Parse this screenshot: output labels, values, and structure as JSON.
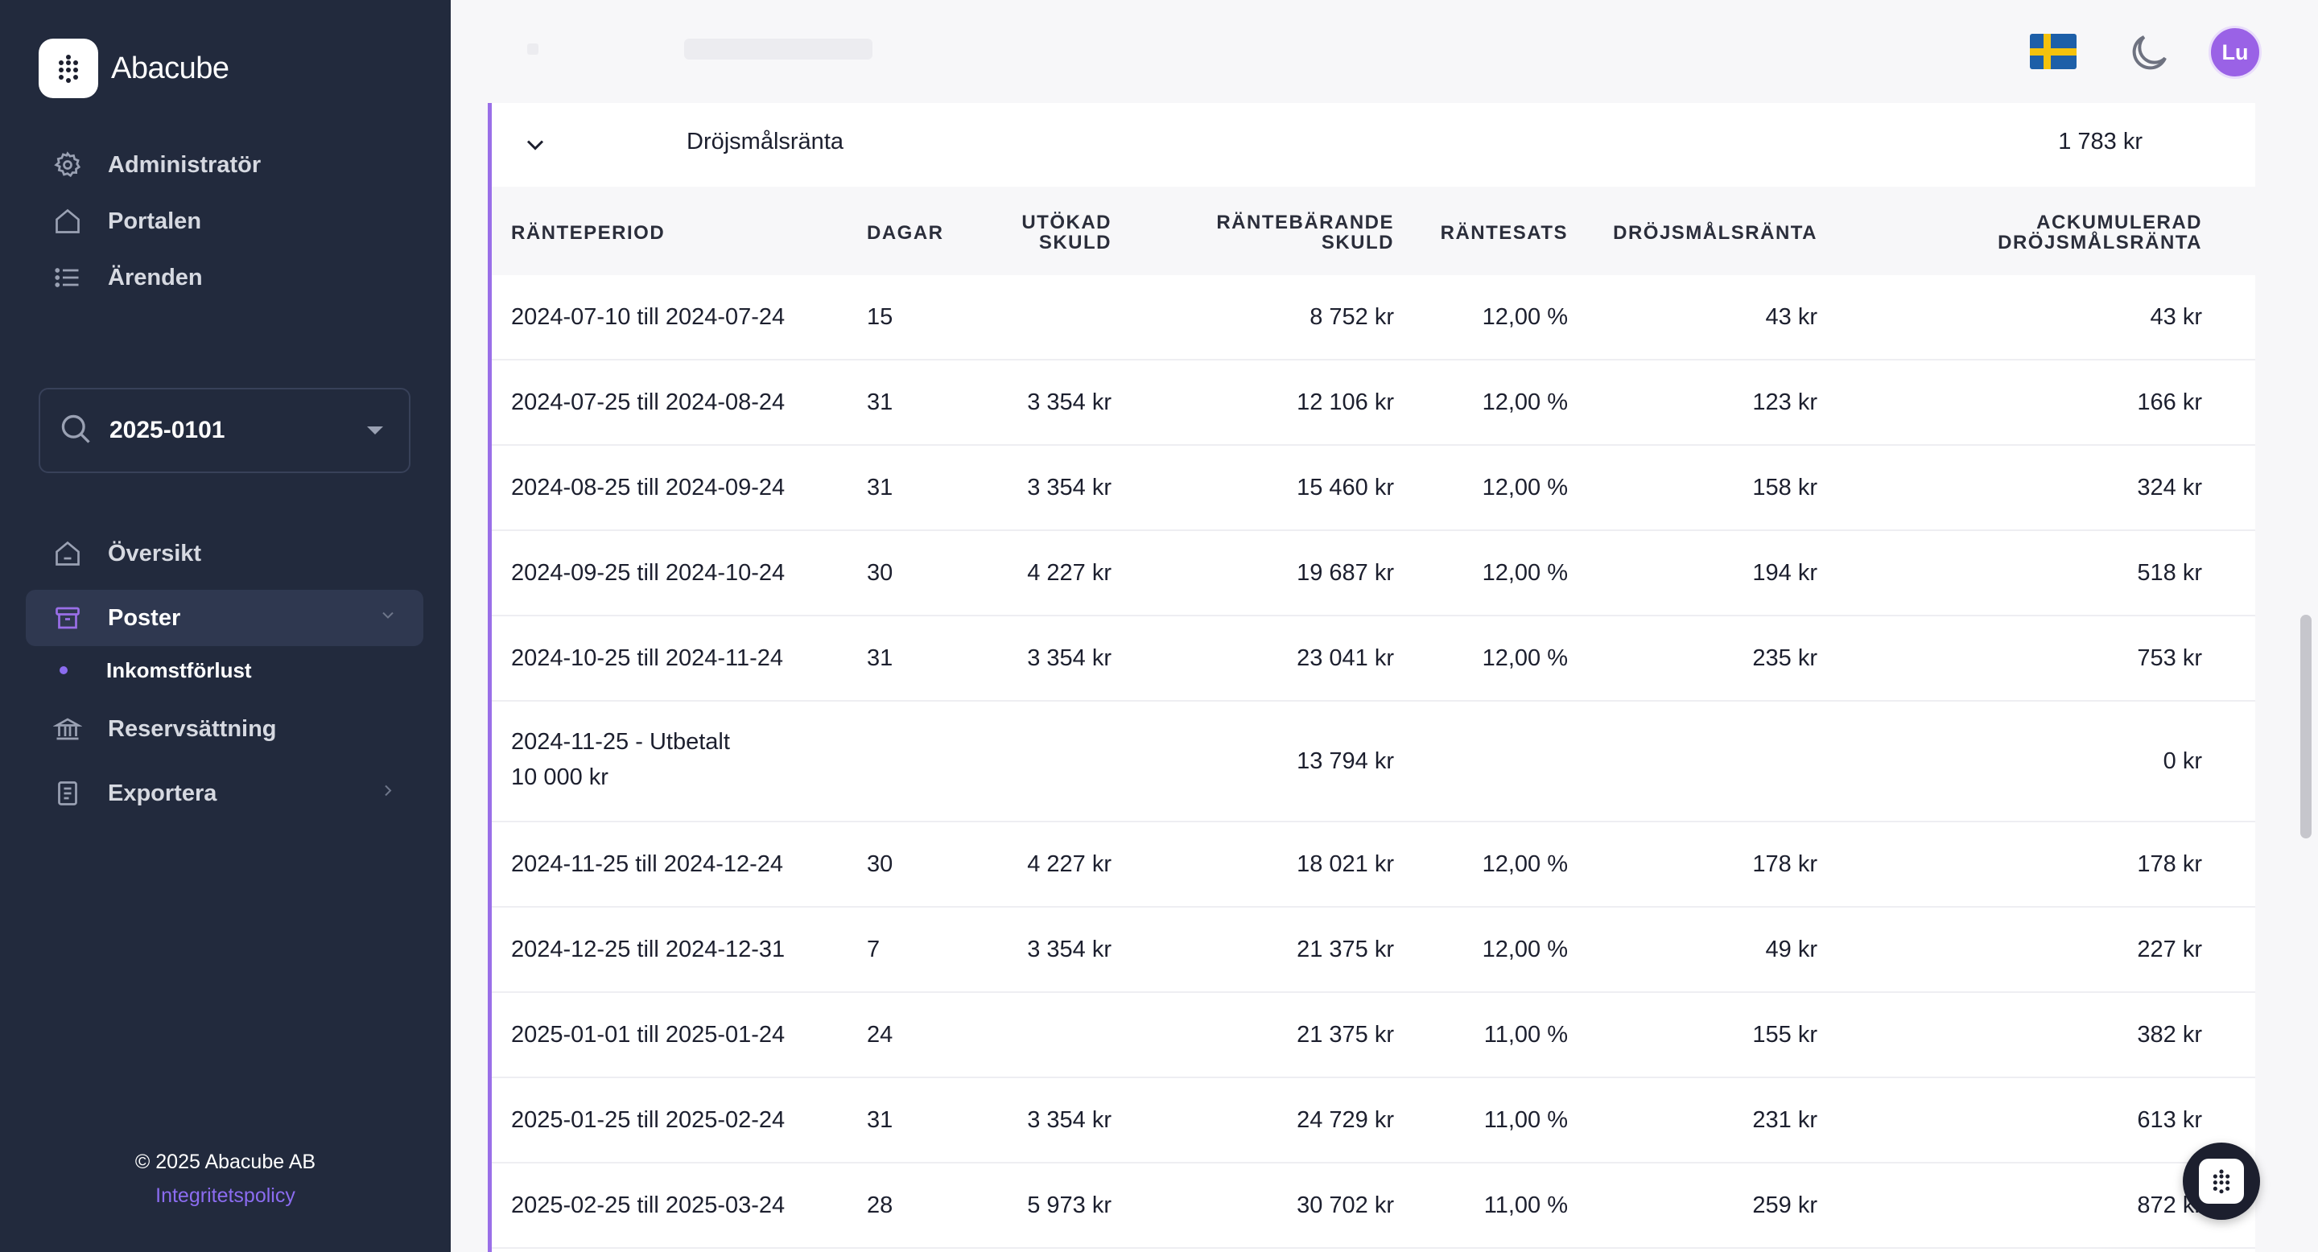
{
  "brand": {
    "name": "Abacube"
  },
  "sidebar": {
    "top_items": [
      {
        "label": "Administratör",
        "icon": "gear-icon"
      },
      {
        "label": "Portalen",
        "icon": "home-icon"
      },
      {
        "label": "Ärenden",
        "icon": "list-icon"
      }
    ],
    "case_select": {
      "value": "2025-0101",
      "icon": "search-icon"
    },
    "items": [
      {
        "label": "Översikt",
        "icon": "home-icon"
      },
      {
        "label": "Poster",
        "icon": "archive-icon",
        "active": true
      },
      {
        "label": "Reservsättning",
        "icon": "bank-icon"
      },
      {
        "label": "Exportera",
        "icon": "document-icon"
      }
    ],
    "sub_items": [
      {
        "label": "Inkomstförlust"
      }
    ],
    "footer": {
      "copyright": "© 2025 Abacube AB",
      "privacy": "Integritetspolicy"
    }
  },
  "topbar": {
    "language_flag": "swedish-flag",
    "theme_icon": "moon-icon",
    "avatar_initials": "Lu"
  },
  "colors": {
    "accent": "#9a6fe8",
    "sidebar_bg": "#222a3d",
    "avatar_bg": "#9a62e6"
  },
  "section": {
    "title": "Dröjsmålsränta",
    "total": "1 783 kr"
  },
  "table": {
    "headers": {
      "period": "RÄNTEPERIOD",
      "days": "DAGAR",
      "utokad_1": "UTÖKAD",
      "utokad_2": "SKULD",
      "rantebar_1": "RÄNTEBÄRANDE",
      "rantebar_2": "SKULD",
      "rantesats": "RÄNTESATS",
      "drojs": "DRÖJSMÅLSRÄNTA",
      "acc_1": "ACKUMULERAD",
      "acc_2": "DRÖJSMÅLSRÄNTA"
    },
    "rows": [
      {
        "period": "2024-07-10 till 2024-07-24",
        "days": "15",
        "utokad": "",
        "rantebar": "8 752 kr",
        "rantesats": "12,00 %",
        "drojs": "43 kr",
        "acc": "43 kr"
      },
      {
        "period": "2024-07-25 till 2024-08-24",
        "days": "31",
        "utokad": "3 354 kr",
        "rantebar": "12 106 kr",
        "rantesats": "12,00 %",
        "drojs": "123 kr",
        "acc": "166 kr"
      },
      {
        "period": "2024-08-25 till 2024-09-24",
        "days": "31",
        "utokad": "3 354 kr",
        "rantebar": "15 460 kr",
        "rantesats": "12,00 %",
        "drojs": "158 kr",
        "acc": "324 kr"
      },
      {
        "period": "2024-09-25 till 2024-10-24",
        "days": "30",
        "utokad": "4 227 kr",
        "rantebar": "19 687 kr",
        "rantesats": "12,00 %",
        "drojs": "194 kr",
        "acc": "518 kr"
      },
      {
        "period": "2024-10-25 till 2024-11-24",
        "days": "31",
        "utokad": "3 354 kr",
        "rantebar": "23 041 kr",
        "rantesats": "12,00 %",
        "drojs": "235 kr",
        "acc": "753 kr"
      },
      {
        "period_line1": "2024-11-25 - Utbetalt",
        "period_line2": "10 000 kr",
        "days": "",
        "utokad": "",
        "rantebar": "13 794 kr",
        "rantesats": "",
        "drojs": "",
        "acc": "0 kr"
      },
      {
        "period": "2024-11-25 till 2024-12-24",
        "days": "30",
        "utokad": "4 227 kr",
        "rantebar": "18 021 kr",
        "rantesats": "12,00 %",
        "drojs": "178 kr",
        "acc": "178 kr"
      },
      {
        "period": "2024-12-25 till 2024-12-31",
        "days": "7",
        "utokad": "3 354 kr",
        "rantebar": "21 375 kr",
        "rantesats": "12,00 %",
        "drojs": "49 kr",
        "acc": "227 kr"
      },
      {
        "period": "2025-01-01 till 2025-01-24",
        "days": "24",
        "utokad": "",
        "rantebar": "21 375 kr",
        "rantesats": "11,00 %",
        "drojs": "155 kr",
        "acc": "382 kr"
      },
      {
        "period": "2025-01-25 till 2025-02-24",
        "days": "31",
        "utokad": "3 354 kr",
        "rantebar": "24 729 kr",
        "rantesats": "11,00 %",
        "drojs": "231 kr",
        "acc": "613 kr"
      },
      {
        "period": "2025-02-25 till 2025-03-24",
        "days": "28",
        "utokad": "5 973 kr",
        "rantebar": "30 702 kr",
        "rantesats": "11,00 %",
        "drojs": "259 kr",
        "acc": "872 kr"
      }
    ]
  }
}
